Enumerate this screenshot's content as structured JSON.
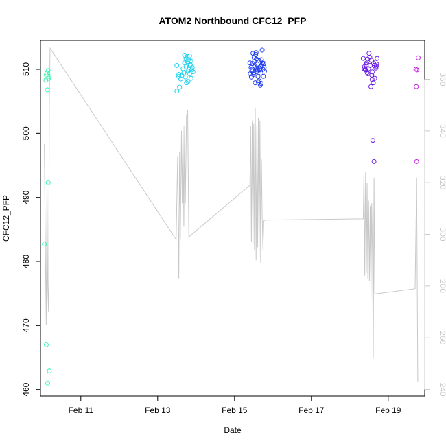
{
  "chart_data": {
    "type": "scatter",
    "title": "ATOM2 Northbound CFC12_PFP",
    "xlabel": "Date",
    "ylabel": "CFC12_PFP",
    "x_unit": "days in February 2016",
    "xlim": [
      9.95,
      19.95
    ],
    "ylim": [
      459.0,
      514.5
    ],
    "y2lim": [
      237.5,
      375.0
    ],
    "x_ticks": [
      {
        "value": 11,
        "label": "Feb 11"
      },
      {
        "value": 13,
        "label": "Feb 13"
      },
      {
        "value": 15,
        "label": "Feb 15"
      },
      {
        "value": 17,
        "label": "Feb 17"
      },
      {
        "value": 19,
        "label": "Feb 19"
      }
    ],
    "y_ticks": [
      460,
      470,
      480,
      490,
      500,
      510
    ],
    "y2_ticks": [
      240,
      260,
      280,
      300,
      320,
      340,
      360
    ],
    "series": [
      {
        "color": "#3DF5B0",
        "points": [
          [
            10.15,
            509.8
          ],
          [
            10.12,
            509.4
          ],
          [
            10.1,
            509.1
          ],
          [
            10.09,
            508.3
          ],
          [
            10.17,
            508.9
          ],
          [
            10.16,
            508.6
          ],
          [
            10.13,
            506.8
          ],
          [
            10.15,
            492.3
          ],
          [
            10.05,
            482.7
          ],
          [
            10.1,
            467.0
          ],
          [
            10.18,
            462.9
          ],
          [
            10.14,
            461.0
          ]
        ]
      },
      {
        "color": "#22D3EE",
        "points": [
          [
            13.5,
            510.6
          ],
          [
            13.55,
            509.2
          ],
          [
            13.6,
            508.5
          ],
          [
            13.55,
            508.9
          ],
          [
            13.5,
            506.6
          ],
          [
            13.57,
            507.2
          ],
          [
            13.63,
            509.0
          ],
          [
            13.66,
            510.1
          ],
          [
            13.68,
            509.4
          ],
          [
            13.7,
            511.0
          ],
          [
            13.72,
            508.8
          ],
          [
            13.74,
            510.4
          ],
          [
            13.77,
            511.2
          ],
          [
            13.79,
            509.7
          ],
          [
            13.81,
            510.0
          ],
          [
            13.83,
            509.3
          ],
          [
            13.85,
            510.7
          ],
          [
            13.87,
            508.6
          ],
          [
            13.89,
            509.9
          ],
          [
            13.7,
            512.2
          ],
          [
            13.74,
            511.6
          ],
          [
            13.77,
            512.0
          ],
          [
            13.8,
            511.5
          ],
          [
            13.83,
            512.1
          ],
          [
            13.86,
            511.3
          ],
          [
            13.9,
            510.3
          ],
          [
            13.92,
            509.6
          ],
          [
            13.75,
            507.9
          ],
          [
            13.79,
            508.1
          ],
          [
            13.82,
            510.6
          ]
        ]
      },
      {
        "color": "#1E3CF0",
        "points": [
          [
            15.4,
            511.0
          ],
          [
            15.43,
            510.3
          ],
          [
            15.45,
            509.8
          ],
          [
            15.47,
            510.9
          ],
          [
            15.49,
            509.2
          ],
          [
            15.51,
            511.8
          ],
          [
            15.53,
            510.5
          ],
          [
            15.55,
            512.3
          ],
          [
            15.57,
            509.6
          ],
          [
            15.59,
            510.8
          ],
          [
            15.61,
            508.9
          ],
          [
            15.63,
            511.4
          ],
          [
            15.65,
            510.1
          ],
          [
            15.67,
            507.5
          ],
          [
            15.69,
            509.4
          ],
          [
            15.71,
            510.7
          ],
          [
            15.73,
            511.0
          ],
          [
            15.75,
            508.9
          ],
          [
            15.77,
            510.3
          ],
          [
            15.48,
            512.5
          ],
          [
            15.52,
            511.2
          ],
          [
            15.56,
            512.6
          ],
          [
            15.6,
            509.9
          ],
          [
            15.64,
            508.2
          ],
          [
            15.68,
            510.4
          ],
          [
            15.72,
            513.0
          ],
          [
            15.44,
            508.8
          ],
          [
            15.5,
            509.5
          ],
          [
            15.58,
            510.2
          ],
          [
            15.66,
            509.9
          ],
          [
            15.7,
            511.5
          ],
          [
            15.74,
            510.0
          ],
          [
            15.62,
            508.0
          ],
          [
            15.46,
            510.0
          ],
          [
            15.54,
            507.9
          ],
          [
            15.78,
            509.7
          ],
          [
            15.41,
            509.3
          ],
          [
            15.57,
            511.6
          ],
          [
            15.69,
            507.8
          ],
          [
            15.76,
            510.9
          ]
        ]
      },
      {
        "color": "#6A1FE3",
        "points": [
          [
            18.35,
            511.7
          ],
          [
            18.38,
            510.4
          ],
          [
            18.41,
            509.9
          ],
          [
            18.44,
            511.0
          ],
          [
            18.47,
            509.3
          ],
          [
            18.5,
            512.5
          ],
          [
            18.53,
            510.6
          ],
          [
            18.56,
            511.4
          ],
          [
            18.59,
            509.6
          ],
          [
            18.62,
            510.9
          ],
          [
            18.65,
            508.6
          ],
          [
            18.68,
            510.2
          ],
          [
            18.71,
            511.7
          ],
          [
            18.4,
            510.0
          ],
          [
            18.46,
            511.6
          ],
          [
            18.52,
            511.9
          ],
          [
            18.58,
            508.4
          ],
          [
            18.64,
            510.6
          ],
          [
            18.7,
            510.8
          ],
          [
            18.55,
            507.3
          ],
          [
            18.6,
            498.9
          ],
          [
            18.63,
            495.6
          ],
          [
            18.43,
            510.7
          ],
          [
            18.49,
            510.1
          ],
          [
            18.57,
            509.1
          ],
          [
            18.66,
            511.1
          ],
          [
            18.37,
            510.1
          ],
          [
            18.61,
            507.9
          ],
          [
            18.45,
            509.5
          ],
          [
            18.69,
            510.5
          ]
        ]
      },
      {
        "color": "#C824E0",
        "points": [
          [
            19.72,
            510.0
          ],
          [
            19.75,
            509.9
          ],
          [
            19.78,
            511.8
          ],
          [
            19.73,
            507.3
          ],
          [
            19.74,
            495.6
          ]
        ]
      }
    ],
    "secondary_line": {
      "color": "#C8C8C8",
      "axis": "right",
      "points": [
        [
          10.05,
          335.0
        ],
        [
          10.08,
          290.0
        ],
        [
          10.1,
          265.0
        ],
        [
          10.12,
          320.0
        ],
        [
          10.14,
          280.0
        ],
        [
          10.16,
          270.0
        ],
        [
          10.18,
          352.0
        ],
        [
          10.2,
          372.0
        ],
        [
          13.48,
          298.0
        ],
        [
          13.52,
          330.0
        ],
        [
          13.55,
          283.0
        ],
        [
          13.57,
          332.0
        ],
        [
          13.59,
          298.0
        ],
        [
          13.62,
          340.0
        ],
        [
          13.64,
          312.0
        ],
        [
          13.66,
          342.0
        ],
        [
          13.68,
          303.0
        ],
        [
          13.7,
          342.0
        ],
        [
          13.72,
          312.0
        ],
        [
          13.75,
          346.0
        ],
        [
          13.78,
          348.0
        ],
        [
          13.81,
          299.0
        ],
        [
          15.4,
          319.0
        ],
        [
          15.42,
          342.0
        ],
        [
          15.44,
          297.0
        ],
        [
          15.46,
          344.0
        ],
        [
          15.48,
          296.0
        ],
        [
          15.5,
          343.0
        ],
        [
          15.52,
          294.0
        ],
        [
          15.54,
          349.0
        ],
        [
          15.56,
          290.0
        ],
        [
          15.58,
          342.0
        ],
        [
          15.6,
          295.0
        ],
        [
          15.62,
          345.0
        ],
        [
          15.64,
          291.0
        ],
        [
          15.66,
          344.0
        ],
        [
          15.68,
          289.0
        ],
        [
          15.7,
          329.0
        ],
        [
          15.72,
          307.0
        ],
        [
          15.74,
          294.0
        ],
        [
          15.76,
          305.0
        ],
        [
          15.78,
          305.5
        ],
        [
          18.35,
          306.0
        ],
        [
          18.37,
          324.0
        ],
        [
          18.39,
          284.0
        ],
        [
          18.41,
          324.0
        ],
        [
          18.43,
          285.0
        ],
        [
          18.45,
          320.0
        ],
        [
          18.47,
          283.0
        ],
        [
          18.49,
          313.0
        ],
        [
          18.51,
          282.0
        ],
        [
          18.53,
          311.0
        ],
        [
          18.55,
          275.0
        ],
        [
          18.57,
          312.0
        ],
        [
          18.59,
          293.0
        ],
        [
          18.61,
          252.0
        ],
        [
          18.63,
          322.0
        ],
        [
          18.65,
          277.0
        ],
        [
          18.67,
          277.0
        ],
        [
          19.7,
          279.0
        ],
        [
          19.74,
          322.0
        ],
        [
          19.77,
          243.0
        ]
      ]
    }
  }
}
